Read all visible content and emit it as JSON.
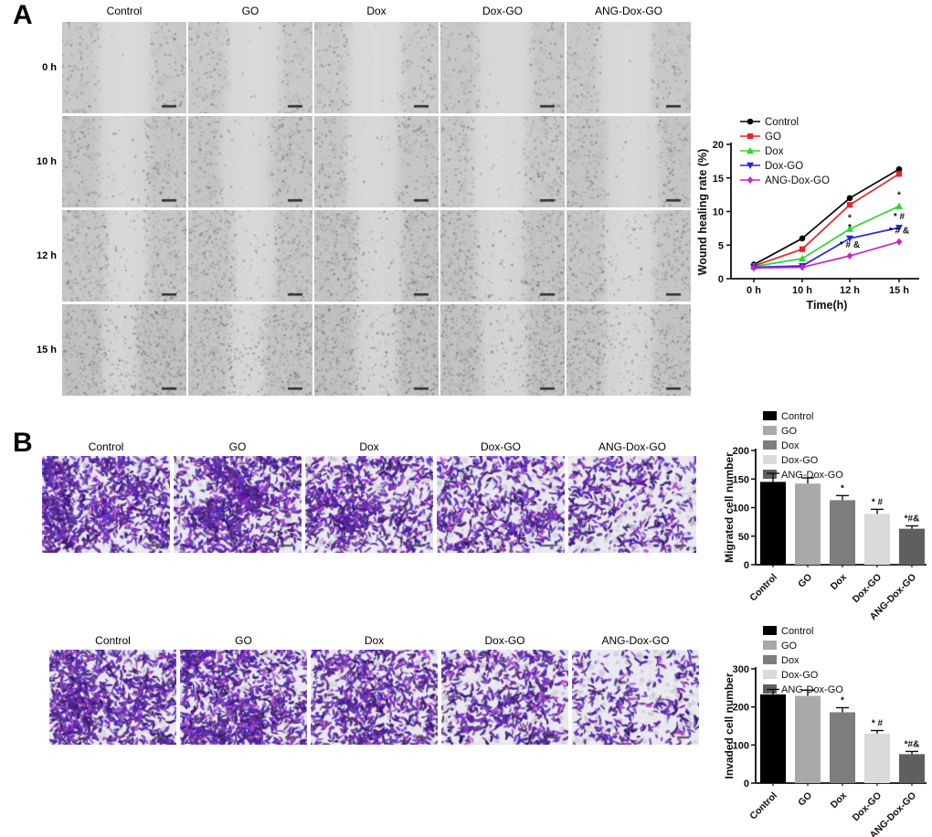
{
  "panel_a": {
    "label": "A",
    "columns": [
      "Control",
      "GO",
      "Dox",
      "Dox-GO",
      "ANG-Dox-GO"
    ],
    "rows": [
      "0 h",
      "10 h",
      "12 h",
      "15 h"
    ],
    "image_type": "phase-contrast wound healing micrograph",
    "has_scale_bar": true
  },
  "panel_b": {
    "label": "B",
    "columns": [
      "Control",
      "GO",
      "Dox",
      "Dox-GO",
      "ANG-Dox-GO"
    ],
    "image_type": "crystal-violet stained transwell micrograph",
    "stain_color": "#4a2f9f",
    "has_scale_bar": true,
    "migration_relative_density": [
      1.0,
      0.97,
      0.77,
      0.61,
      0.43
    ],
    "invasion_relative_density": [
      1.0,
      0.98,
      0.8,
      0.56,
      0.33
    ]
  },
  "chart_data": [
    {
      "id": "wound_healing",
      "type": "line",
      "title": "",
      "xlabel": "Time(h)",
      "ylabel": "Wound healing rate (%)",
      "x_categories": [
        "0 h",
        "10 h",
        "12 h",
        "15 h"
      ],
      "ylim": [
        0,
        20
      ],
      "yticks": [
        0,
        5,
        10,
        15,
        20
      ],
      "legend_position": "top-left",
      "grid": false,
      "series": [
        {
          "name": "Control",
          "color": "#000000",
          "marker": "circle",
          "values": [
            2.1,
            6.0,
            12.0,
            16.3
          ]
        },
        {
          "name": "GO",
          "color": "#ec2127",
          "marker": "square",
          "values": [
            1.9,
            4.4,
            11.0,
            15.6
          ]
        },
        {
          "name": "Dox",
          "color": "#2bd62b",
          "marker": "triangle-up",
          "values": [
            1.8,
            3.0,
            7.4,
            10.8
          ]
        },
        {
          "name": "Dox-GO",
          "color": "#2424dd",
          "marker": "triangle-down",
          "values": [
            1.7,
            1.9,
            6.0,
            7.6
          ]
        },
        {
          "name": "ANG-Dox-GO",
          "color": "#c328c3",
          "marker": "diamond",
          "values": [
            1.6,
            1.7,
            3.4,
            5.5
          ]
        }
      ],
      "annotations": [
        {
          "x_index": 2,
          "series": "Dox",
          "text": "*"
        },
        {
          "x_index": 2,
          "series": "Dox-GO",
          "text": "*"
        },
        {
          "x_index": 2,
          "series": "ANG-Dox-GO",
          "text": "* # &"
        },
        {
          "x_index": 3,
          "series": "Dox",
          "text": "*"
        },
        {
          "x_index": 3,
          "series": "Dox-GO",
          "text": "* #"
        },
        {
          "x_index": 3,
          "series": "ANG-Dox-GO",
          "text": "* # &"
        }
      ]
    },
    {
      "id": "migrated",
      "type": "bar",
      "ylabel": "Migrated cell number",
      "categories": [
        "Control",
        "GO",
        "Dox",
        "Dox-GO",
        "ANG-Dox-GO"
      ],
      "values": [
        145,
        142,
        113,
        89,
        63
      ],
      "errors": [
        15,
        10,
        8,
        8,
        5
      ],
      "bar_colors": [
        "#000000",
        "#a9a9a9",
        "#7d7d7d",
        "#dadada",
        "#5f5f5f"
      ],
      "ylim": [
        0,
        200
      ],
      "yticks": [
        0,
        50,
        100,
        150,
        200
      ],
      "annotations": [
        "",
        "",
        "*",
        "* #",
        "*#&"
      ],
      "legend_position": "top"
    },
    {
      "id": "invaded",
      "type": "bar",
      "ylabel": "Invaded cell number",
      "categories": [
        "Control",
        "GO",
        "Dox",
        "Dox-GO",
        "ANG-Dox-GO"
      ],
      "values": [
        233,
        229,
        186,
        130,
        76
      ],
      "errors": [
        13,
        15,
        12,
        8,
        7
      ],
      "bar_colors": [
        "#000000",
        "#a9a9a9",
        "#7d7d7d",
        "#dadada",
        "#5f5f5f"
      ],
      "ylim": [
        0,
        300
      ],
      "yticks": [
        0,
        100,
        200,
        300
      ],
      "annotations": [
        "",
        "",
        "*",
        "* #",
        "*#&"
      ],
      "legend_position": "top"
    }
  ]
}
